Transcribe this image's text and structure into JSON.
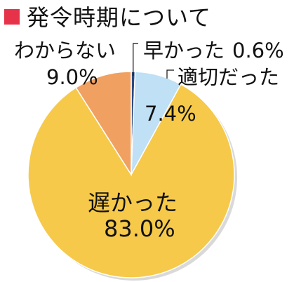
{
  "header": {
    "title": "発令時期について",
    "accent_color": "#e6334a"
  },
  "chart_data": {
    "type": "pie",
    "title": "発令時期について",
    "unit": "%",
    "start_angle_deg": 0,
    "direction": "clockwise",
    "slices": [
      {
        "label": "早かった",
        "value": 0.6,
        "display": "0.6%",
        "color": "#2b4a86"
      },
      {
        "label": "適切だった",
        "value": 7.4,
        "display": "7.4%",
        "color": "#bfe0f5"
      },
      {
        "label": "遅かった",
        "value": 83.0,
        "display": "83.0%",
        "color": "#f6c94a"
      },
      {
        "label": "わからない",
        "value": 9.0,
        "display": "9.0%",
        "color": "#f0a060"
      }
    ],
    "legend": "none"
  }
}
